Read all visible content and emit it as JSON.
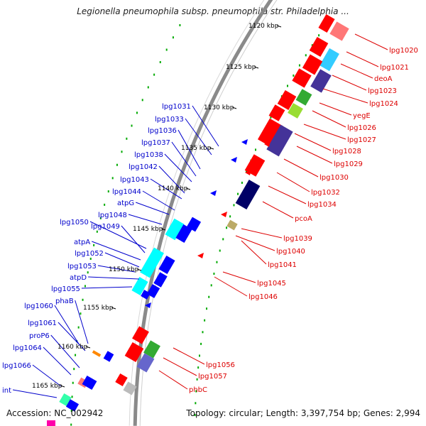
{
  "title": "Legionella pneumophila subsp. pneumophila str. Philadelphia ...",
  "footer": {
    "accession": "Accession: NC_002942",
    "summary": "Topology: circular; Length: 3,397,754 bp; Genes: 2,994"
  },
  "colors": {
    "forward_label": "#dd0000",
    "reverse_label": "#0000cc",
    "backbone": "#888888",
    "ticks": "#008800"
  },
  "scale_labels": [
    "1120 kbp",
    "1125 kbp",
    "1130 kbp",
    "1135 kbp",
    "1140 kbp",
    "1145 kbp",
    "1150 kbp",
    "1155 kbp",
    "1160 kbp",
    "1165 kbp"
  ],
  "forward_labels": [
    "lpg1020",
    "lpg1021",
    "deoA",
    "lpg1023",
    "lpg1024",
    "yegE",
    "lpg1026",
    "lpg1027",
    "lpg1028",
    "lpg1029",
    "lpg1030",
    "lpg1032",
    "lpg1034",
    "pcoA",
    "lpg1039",
    "lpg1040",
    "lpg1041",
    "lpg1045",
    "lpg1046",
    "lpg1056",
    "lpg1057",
    "phbC"
  ],
  "reverse_labels": [
    "lpg1031",
    "lpg1033",
    "lpg1036",
    "lpg1037",
    "lpg1038",
    "lpg1042",
    "lpg1043",
    "lpg1044",
    "atpG",
    "lpg1048",
    "lpg1050",
    "lpg1049",
    "atpA",
    "lpg1052",
    "lpg1053",
    "atpD",
    "lpg1055",
    "phaB",
    "lpg1060",
    "lpg1061",
    "proP6",
    "lpg1064",
    "lpg1066",
    "int"
  ]
}
